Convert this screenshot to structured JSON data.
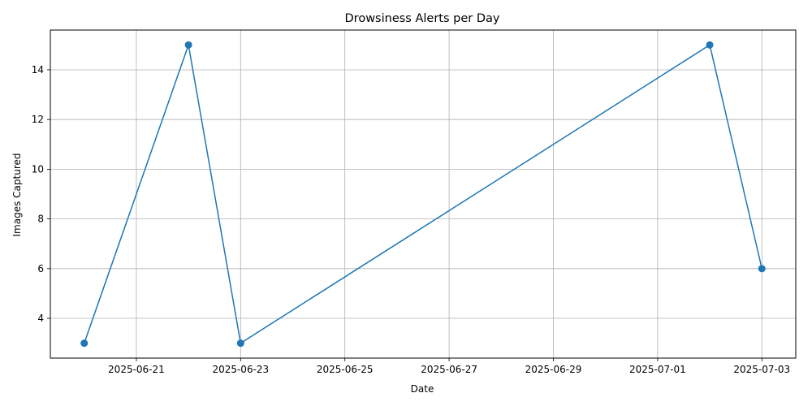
{
  "chart_data": {
    "type": "line",
    "title": "Drowsiness Alerts per Day",
    "xlabel": "Date",
    "ylabel": "Images Captured",
    "x": [
      "2025-06-20",
      "2025-06-22",
      "2025-06-23",
      "2025-07-02",
      "2025-07-03"
    ],
    "series": [
      {
        "values": [
          3,
          15,
          3,
          15,
          6
        ]
      }
    ],
    "xlim": [
      "2025-06-19",
      "2025-07-03"
    ],
    "ylim": [
      2.4,
      15.6
    ],
    "x_ticks": [
      "2025-06-21",
      "2025-06-23",
      "2025-06-25",
      "2025-06-27",
      "2025-06-29",
      "2025-07-01",
      "2025-07-03"
    ],
    "y_ticks": [
      4,
      6,
      8,
      10,
      12,
      14
    ],
    "grid": true,
    "marker": "circle",
    "colors": {
      "line": "#1f77b4",
      "grid": "#b0b0b0",
      "axis": "#000000"
    }
  }
}
